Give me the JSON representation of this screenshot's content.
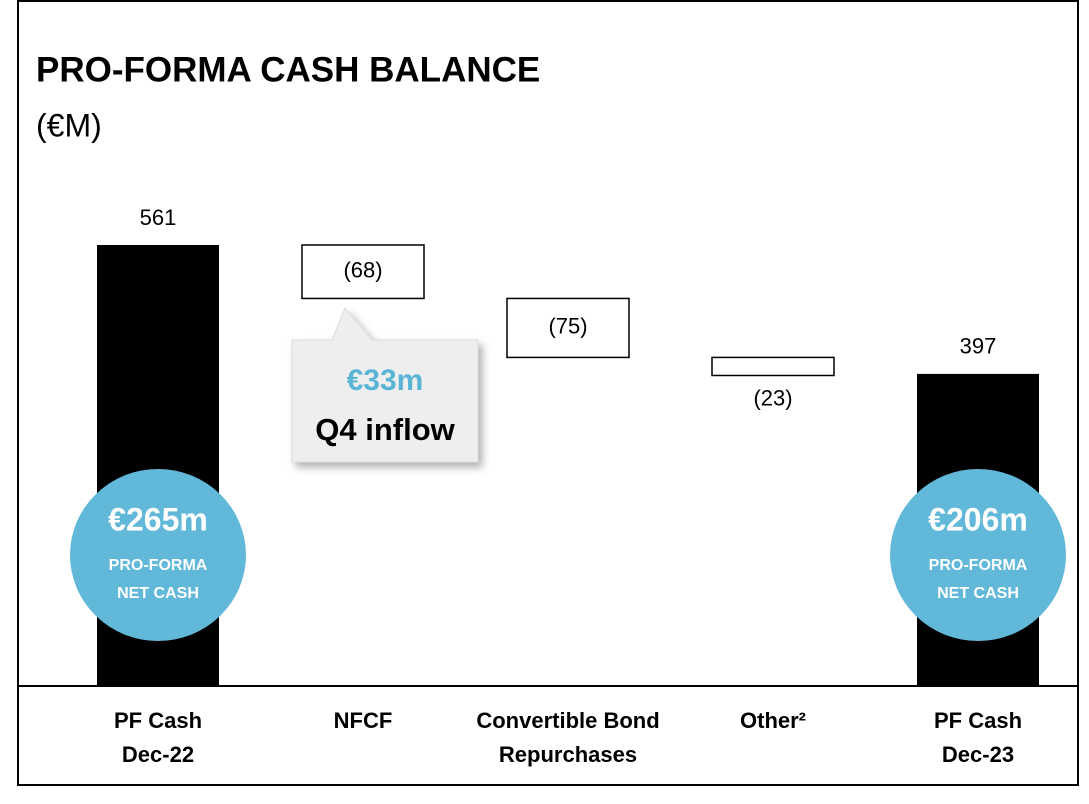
{
  "chart_data": {
    "type": "waterfall",
    "title": "PRO-FORMA CASH BALANCE",
    "subtitle": "(€M)",
    "categories": [
      [
        "PF Cash",
        "Dec-22"
      ],
      [
        "NFCF"
      ],
      [
        "Convertible Bond",
        "Repurchases"
      ],
      [
        "Other²"
      ],
      [
        "PF Cash",
        "Dec-23"
      ]
    ],
    "values": [
      561,
      -68,
      -75,
      -23,
      397
    ],
    "value_labels": [
      "561",
      "(68)",
      "(75)",
      "(23)",
      "397"
    ],
    "measures": [
      "absolute",
      "relative",
      "relative",
      "relative",
      "absolute"
    ],
    "colors": {
      "absolute": "#000000",
      "relative": "#ffffff",
      "badge": "#62b8d9",
      "highlight": "#5ab4d6"
    },
    "callout": {
      "lines": [
        "€33m",
        "Q4 inflow"
      ]
    },
    "badges": [
      {
        "lines": [
          "€265m",
          "PRO-FORMA",
          "NET CASH"
        ]
      },
      {
        "lines": [
          "€206m",
          "PRO-FORMA",
          "NET CASH"
        ]
      }
    ]
  }
}
